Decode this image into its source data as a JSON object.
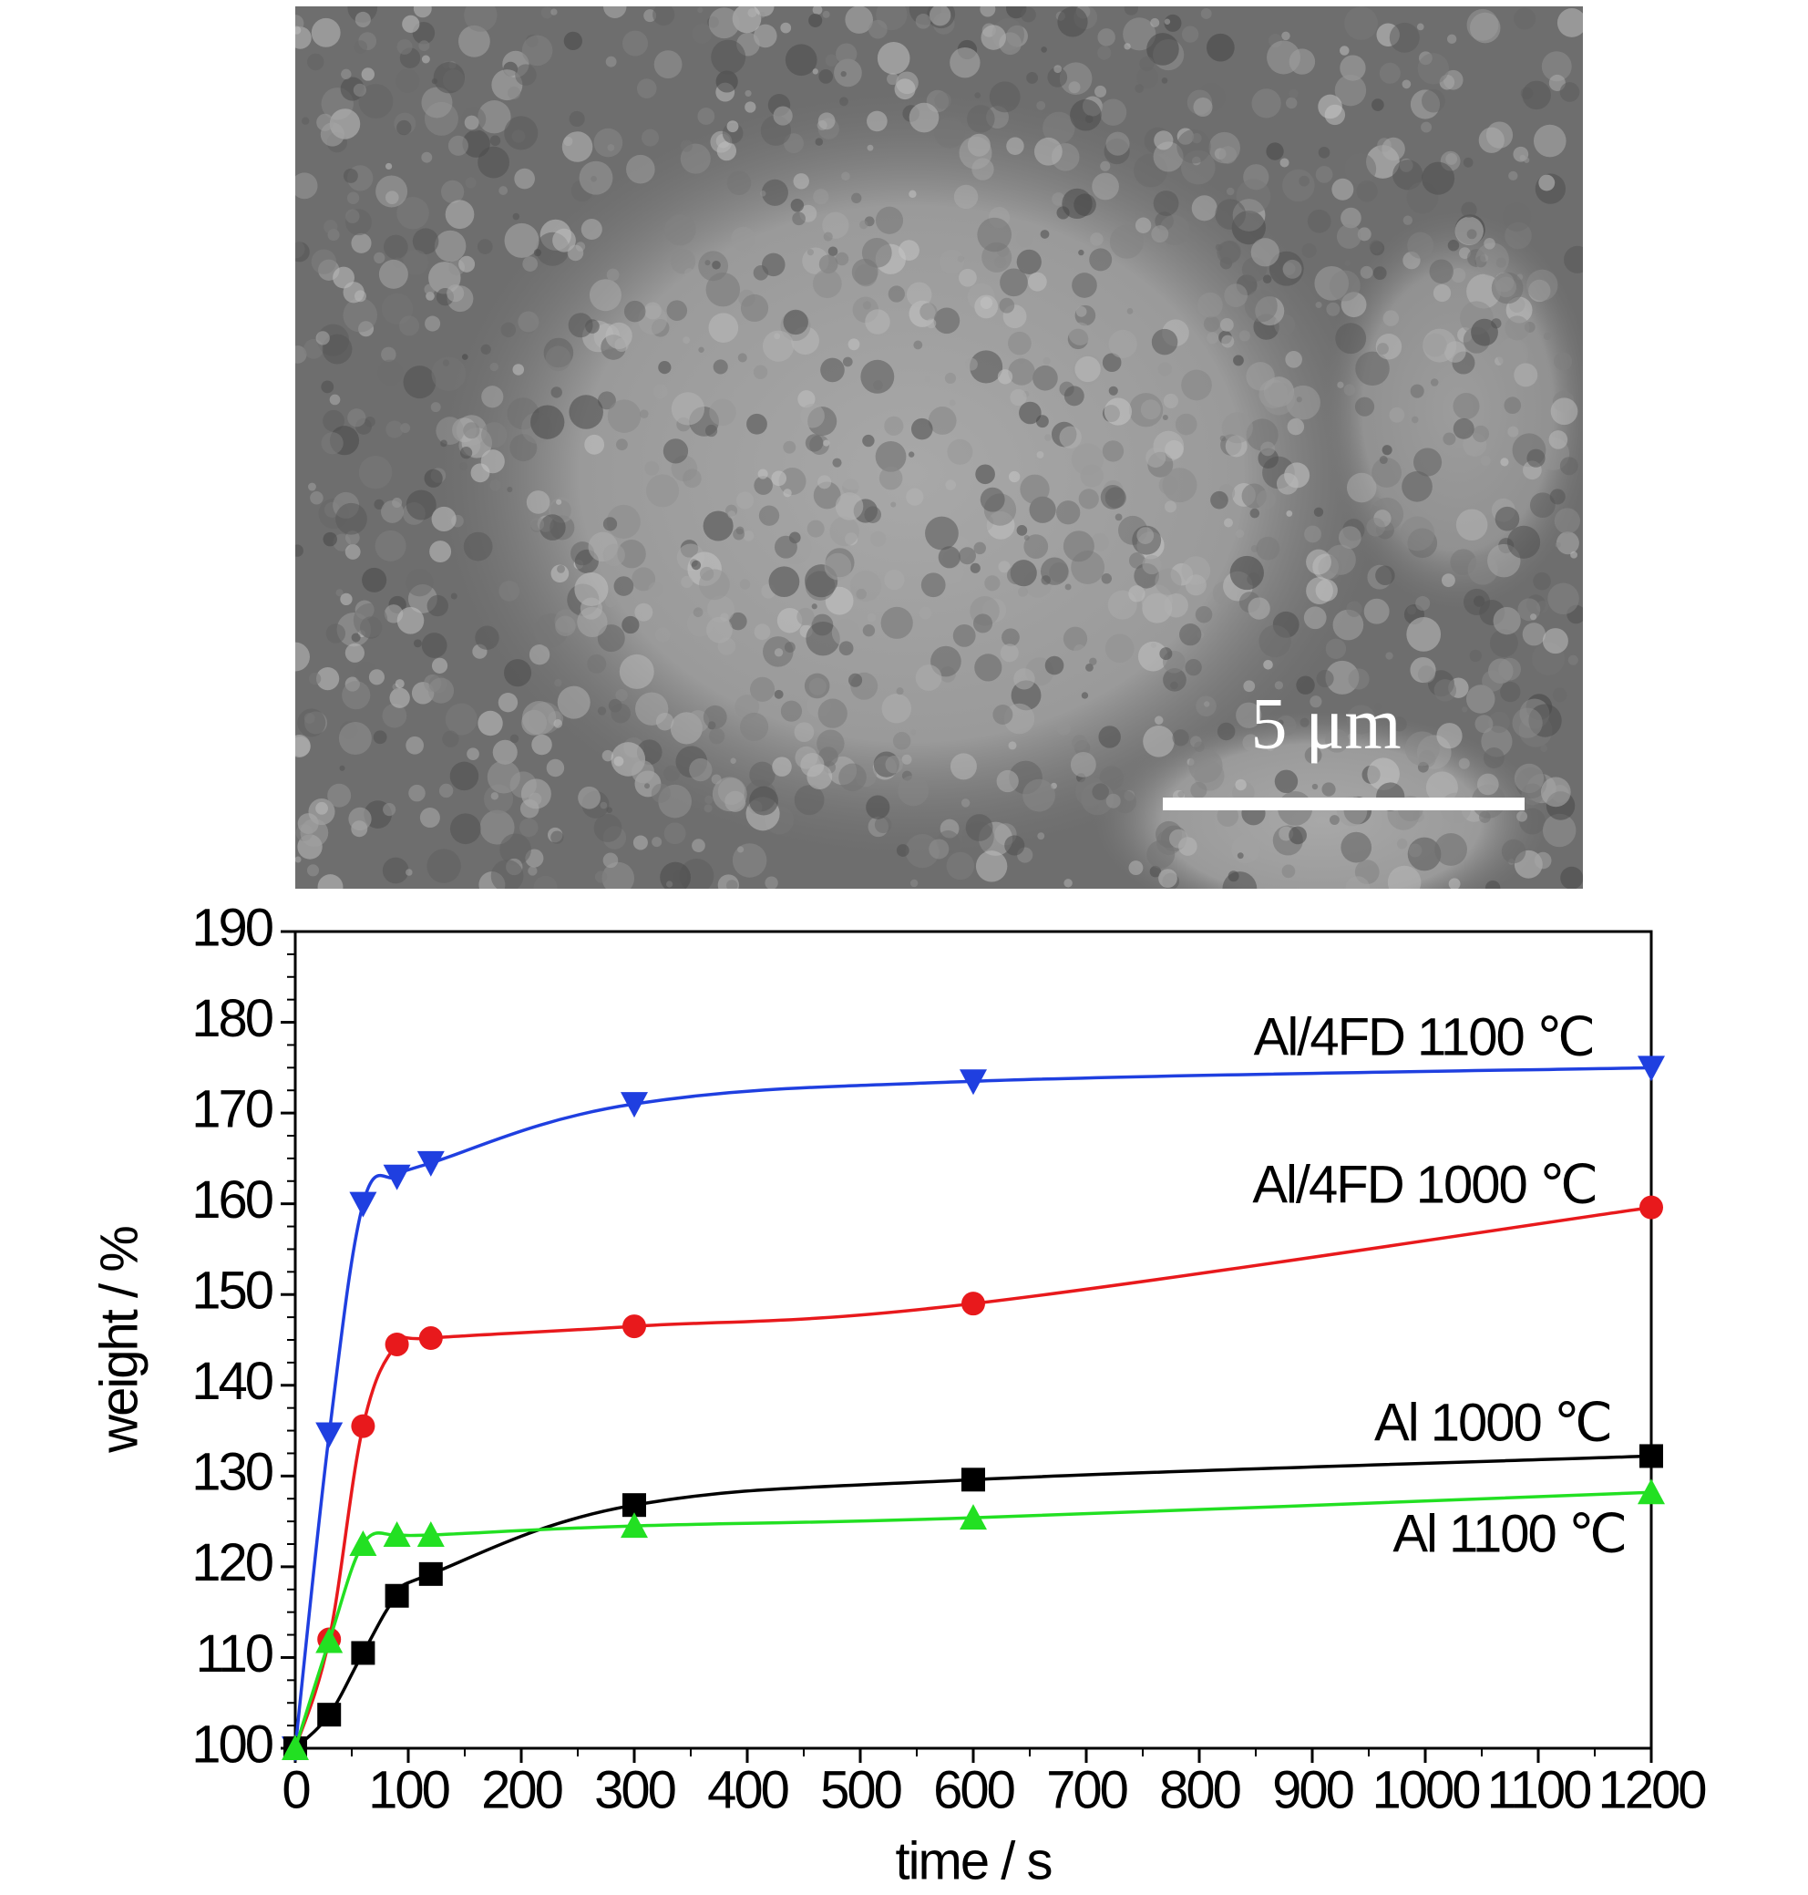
{
  "image": {
    "scale_label": "5 μm"
  },
  "chart_data": {
    "type": "line",
    "xlabel": "time / s",
    "ylabel": "weight / %",
    "x": [
      0,
      30,
      60,
      90,
      120,
      300,
      600,
      1200
    ],
    "series": [
      {
        "name": "Al/4FD  1100 ℃",
        "color": "#1f3fe0",
        "marker": "triangle-down",
        "values": [
          100,
          134.6,
          160,
          163,
          164.5,
          171,
          173.5,
          175
        ]
      },
      {
        "name": "Al/4FD  1000 ℃",
        "color": "#e8191c",
        "marker": "circle",
        "values": [
          100,
          112,
          135.5,
          144.5,
          145.2,
          146.5,
          149,
          159.6
        ]
      },
      {
        "name": "Al  1000 ℃",
        "color": "#000000",
        "marker": "square",
        "values": [
          100,
          103.7,
          110.5,
          116.8,
          119.2,
          126.8,
          129.6,
          132.2
        ]
      },
      {
        "name": "Al  1100 ℃",
        "color": "#22e022",
        "marker": "triangle-up",
        "values": [
          100,
          111.8,
          122.5,
          123.5,
          123.5,
          124.5,
          125.4,
          128.2
        ]
      }
    ],
    "xlim": [
      0,
      1200
    ],
    "xticks": [
      0,
      100,
      200,
      300,
      400,
      500,
      600,
      700,
      800,
      900,
      1000,
      1100,
      1200
    ],
    "ylim": [
      100,
      190
    ],
    "yticks": [
      100,
      110,
      120,
      130,
      140,
      150,
      160,
      170,
      180,
      190
    ]
  }
}
